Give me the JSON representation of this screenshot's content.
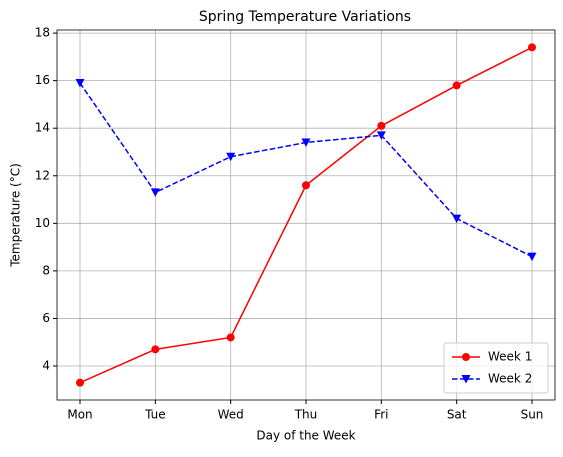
{
  "chart_data": {
    "type": "line",
    "title": "Spring Temperature Variations",
    "x_label": "Day of the Week",
    "y_label": "Temperature (°C)",
    "categories": [
      "Mon",
      "Tue",
      "Wed",
      "Thu",
      "Fri",
      "Sat",
      "Sun"
    ],
    "series": [
      {
        "name": "Week 1",
        "color": "#ff0000",
        "linestyle": "solid",
        "marker": "circle",
        "values": [
          3.3,
          4.7,
          5.2,
          11.6,
          14.1,
          15.8,
          17.4
        ]
      },
      {
        "name": "Week 2",
        "color": "#0000ff",
        "linestyle": "dashed",
        "marker": "triangle-down",
        "values": [
          15.9,
          11.3,
          12.8,
          13.4,
          13.7,
          10.2,
          8.6
        ]
      }
    ],
    "ylim": [
      2.57,
      18.13
    ],
    "yticks": [
      4,
      6,
      8,
      10,
      12,
      14,
      16,
      18
    ],
    "grid": true,
    "legend": "lower right"
  }
}
